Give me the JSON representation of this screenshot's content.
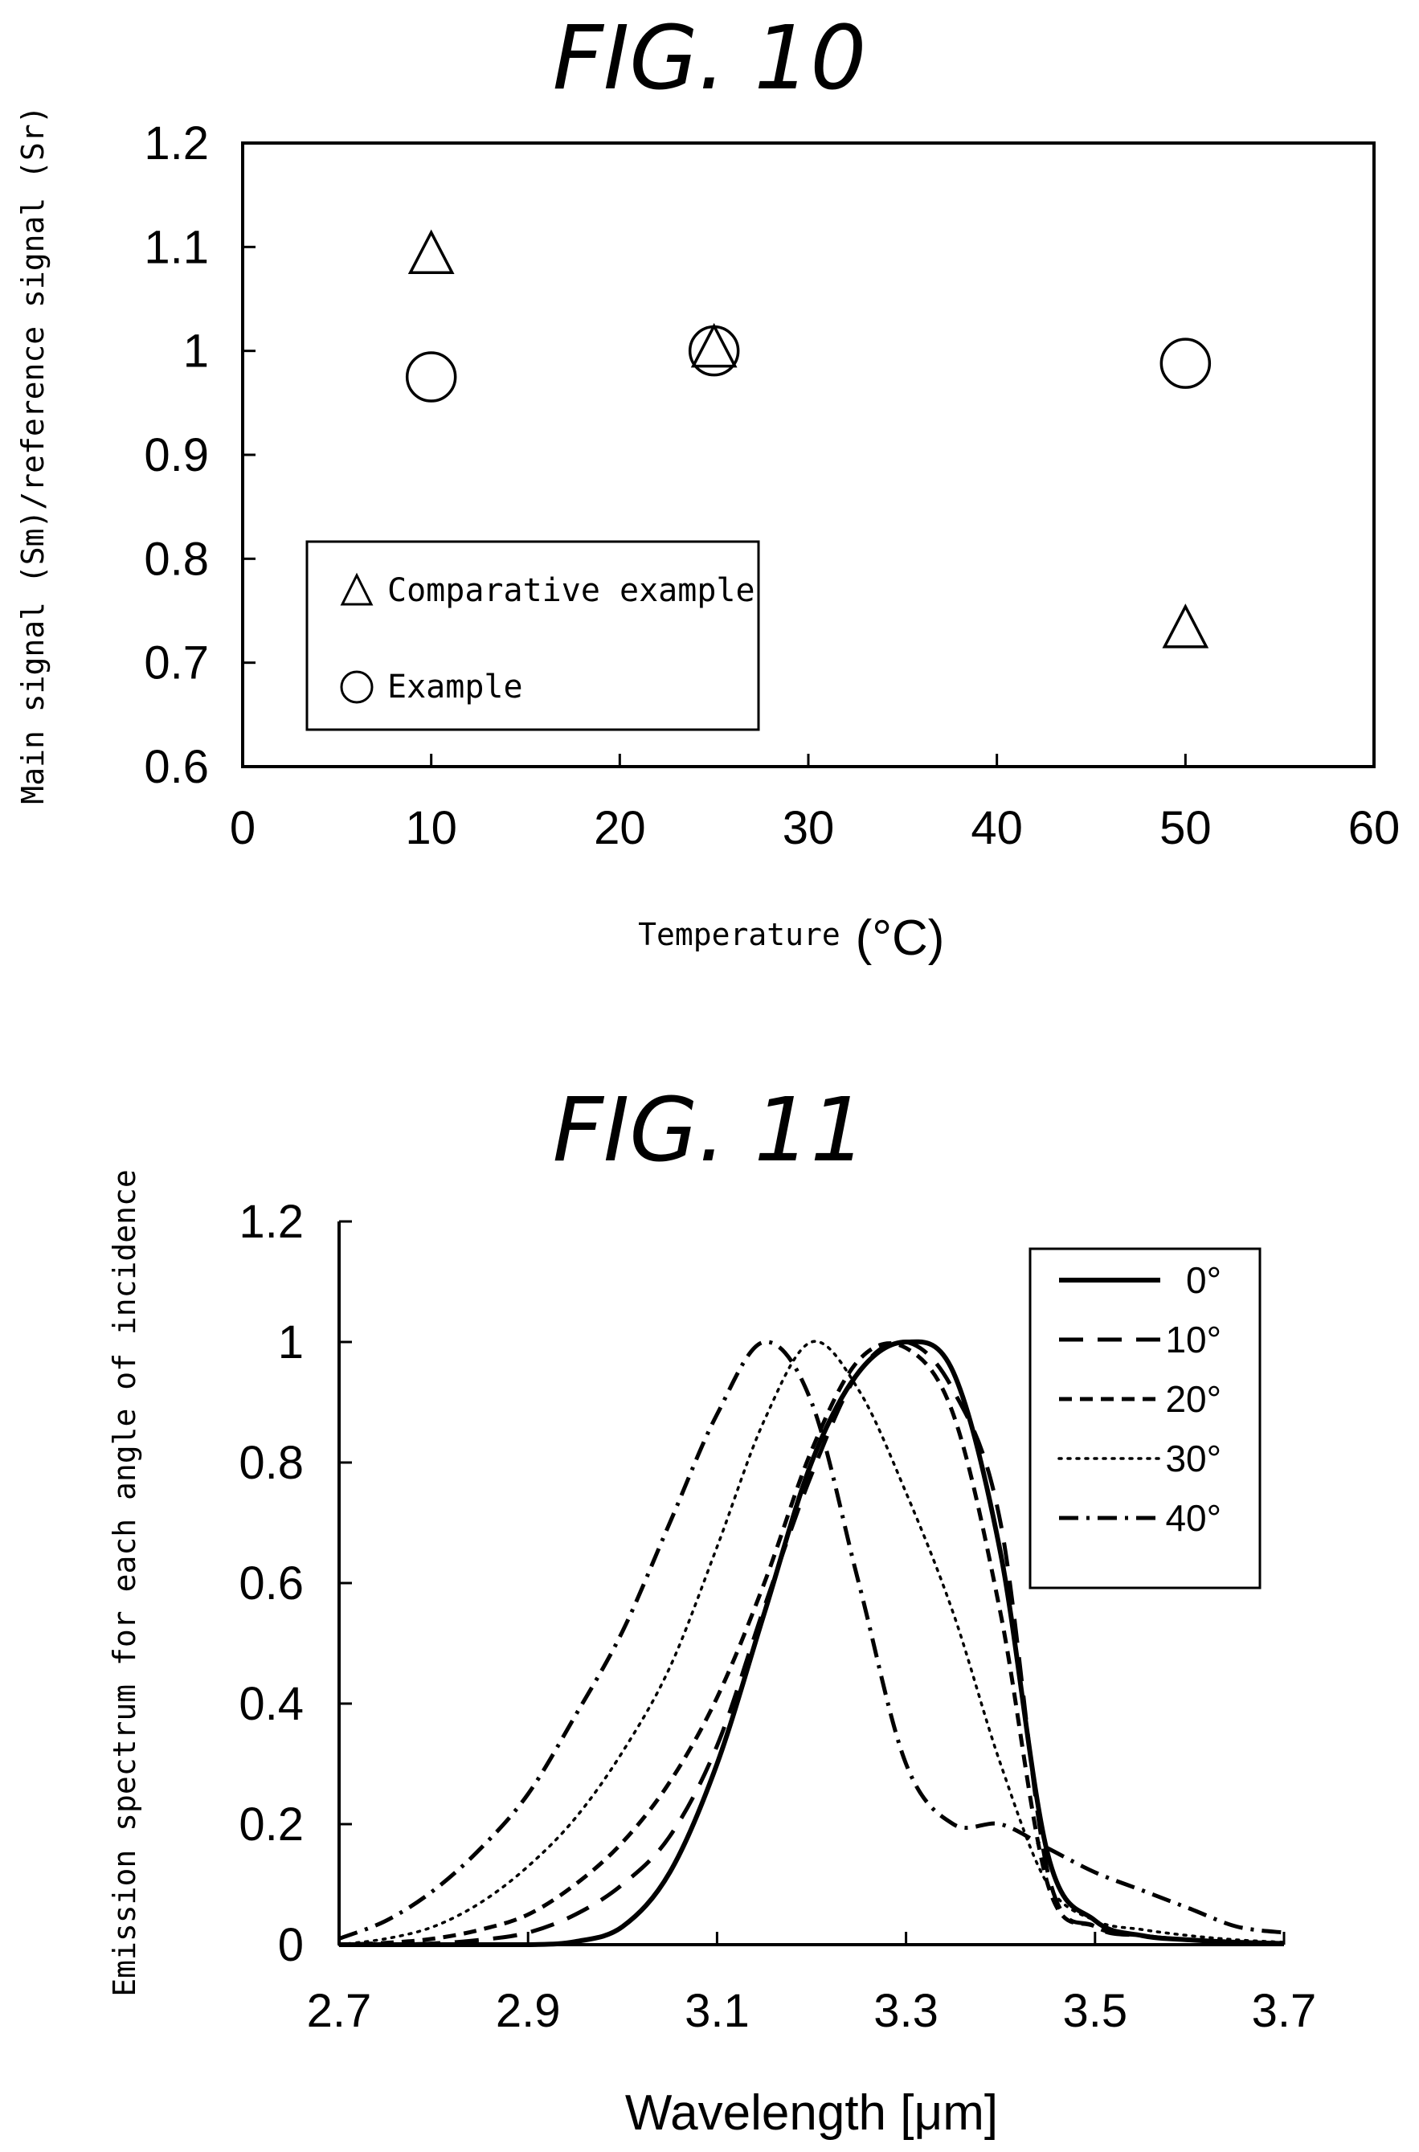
{
  "chart_data": [
    {
      "type": "scatter",
      "title": "FIG. 10",
      "xlabel": "Temperature",
      "xlabel_unit": "(°C)",
      "ylabel": "Main signal (Sm)/reference signal (Sr)",
      "xlim": [
        0,
        60
      ],
      "ylim": [
        0.6,
        1.2
      ],
      "xticks": [
        "0",
        "10",
        "20",
        "30",
        "40",
        "50",
        "60"
      ],
      "yticks": [
        "0.6",
        "0.7",
        "0.8",
        "0.9",
        "1",
        "1.1",
        "1.2"
      ],
      "grid": false,
      "legend_position": "lower-left",
      "series": [
        {
          "name": "Comparative example",
          "marker": "triangle",
          "x": [
            10,
            25,
            50
          ],
          "y": [
            1.09,
            1.0,
            0.73
          ]
        },
        {
          "name": "Example",
          "marker": "circle",
          "x": [
            10,
            25,
            50
          ],
          "y": [
            0.975,
            1.0,
            0.988
          ]
        }
      ]
    },
    {
      "type": "line",
      "title": "FIG. 11",
      "xlabel": "Wavelength [μm]",
      "ylabel": "Emission spectrum for each angle of incidence",
      "xlim": [
        2.7,
        3.7
      ],
      "ylim": [
        0,
        1.2
      ],
      "xticks": [
        "2.7",
        "2.9",
        "3.1",
        "3.3",
        "3.5",
        "3.7"
      ],
      "yticks": [
        "0",
        "0.2",
        "0.4",
        "0.6",
        "0.8",
        "1",
        "1.2"
      ],
      "grid": false,
      "legend_position": "top-right",
      "x": [
        2.7,
        2.75,
        2.8,
        2.85,
        2.9,
        2.95,
        3.0,
        3.05,
        3.1,
        3.15,
        3.2,
        3.25,
        3.3,
        3.35,
        3.4,
        3.45,
        3.5,
        3.55,
        3.6,
        3.65,
        3.7
      ],
      "series": [
        {
          "name": "0°",
          "dash": "solid",
          "values": [
            0,
            0,
            0,
            0,
            0,
            0.005,
            0.03,
            0.12,
            0.3,
            0.55,
            0.8,
            0.95,
            1.0,
            0.95,
            0.65,
            0.15,
            0.04,
            0.015,
            0.008,
            0.004,
            0.002
          ]
        },
        {
          "name": "10°",
          "dash": "long-dash",
          "values": [
            0,
            0,
            0.002,
            0.008,
            0.02,
            0.05,
            0.1,
            0.18,
            0.33,
            0.56,
            0.78,
            0.95,
            1.0,
            0.92,
            0.7,
            0.12,
            0.03,
            0.015,
            0.008,
            0.004,
            0.002
          ]
        },
        {
          "name": "20°",
          "dash": "dash",
          "values": [
            0,
            0.003,
            0.01,
            0.025,
            0.05,
            0.1,
            0.17,
            0.27,
            0.41,
            0.6,
            0.82,
            0.97,
            0.99,
            0.88,
            0.55,
            0.1,
            0.03,
            0.015,
            0.008,
            0.004,
            0.002
          ]
        },
        {
          "name": "30°",
          "dash": "dot",
          "values": [
            0,
            0.01,
            0.03,
            0.07,
            0.13,
            0.21,
            0.32,
            0.46,
            0.66,
            0.87,
            1.0,
            0.92,
            0.75,
            0.55,
            0.3,
            0.1,
            0.04,
            0.025,
            0.015,
            0.008,
            0.004
          ]
        },
        {
          "name": "40°",
          "dash": "dash-dot",
          "values": [
            0.01,
            0.04,
            0.09,
            0.16,
            0.25,
            0.38,
            0.52,
            0.7,
            0.88,
            1.0,
            0.9,
            0.6,
            0.3,
            0.2,
            0.2,
            0.16,
            0.12,
            0.09,
            0.06,
            0.03,
            0.02
          ]
        }
      ]
    }
  ]
}
